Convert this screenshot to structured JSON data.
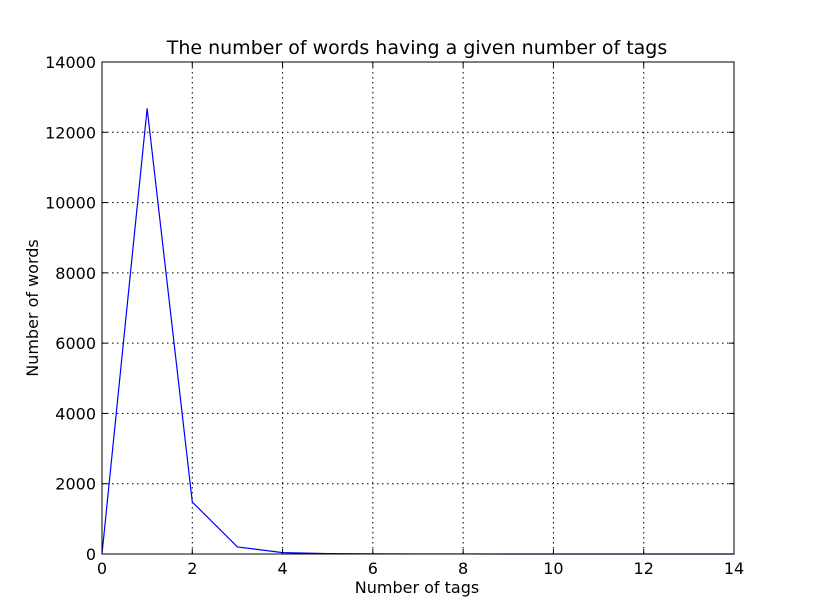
{
  "chart_data": {
    "type": "line",
    "title": "The number of words having a given number of tags",
    "xlabel": "Number of tags",
    "ylabel": "Number of words",
    "xlim": [
      0,
      14
    ],
    "ylim": [
      0,
      14000
    ],
    "xticks": [
      0,
      2,
      4,
      6,
      8,
      10,
      12,
      14
    ],
    "yticks": [
      0,
      2000,
      4000,
      6000,
      8000,
      10000,
      12000,
      14000
    ],
    "grid": true,
    "series": [
      {
        "color": "#0000ff",
        "x": [
          0,
          1,
          2,
          3,
          4,
          5,
          6,
          7,
          8,
          9,
          10,
          11,
          12,
          13,
          14
        ],
        "y": [
          0,
          12680,
          1480,
          200,
          40,
          10,
          3,
          1,
          1,
          0,
          0,
          0,
          0,
          0,
          0
        ]
      }
    ]
  }
}
